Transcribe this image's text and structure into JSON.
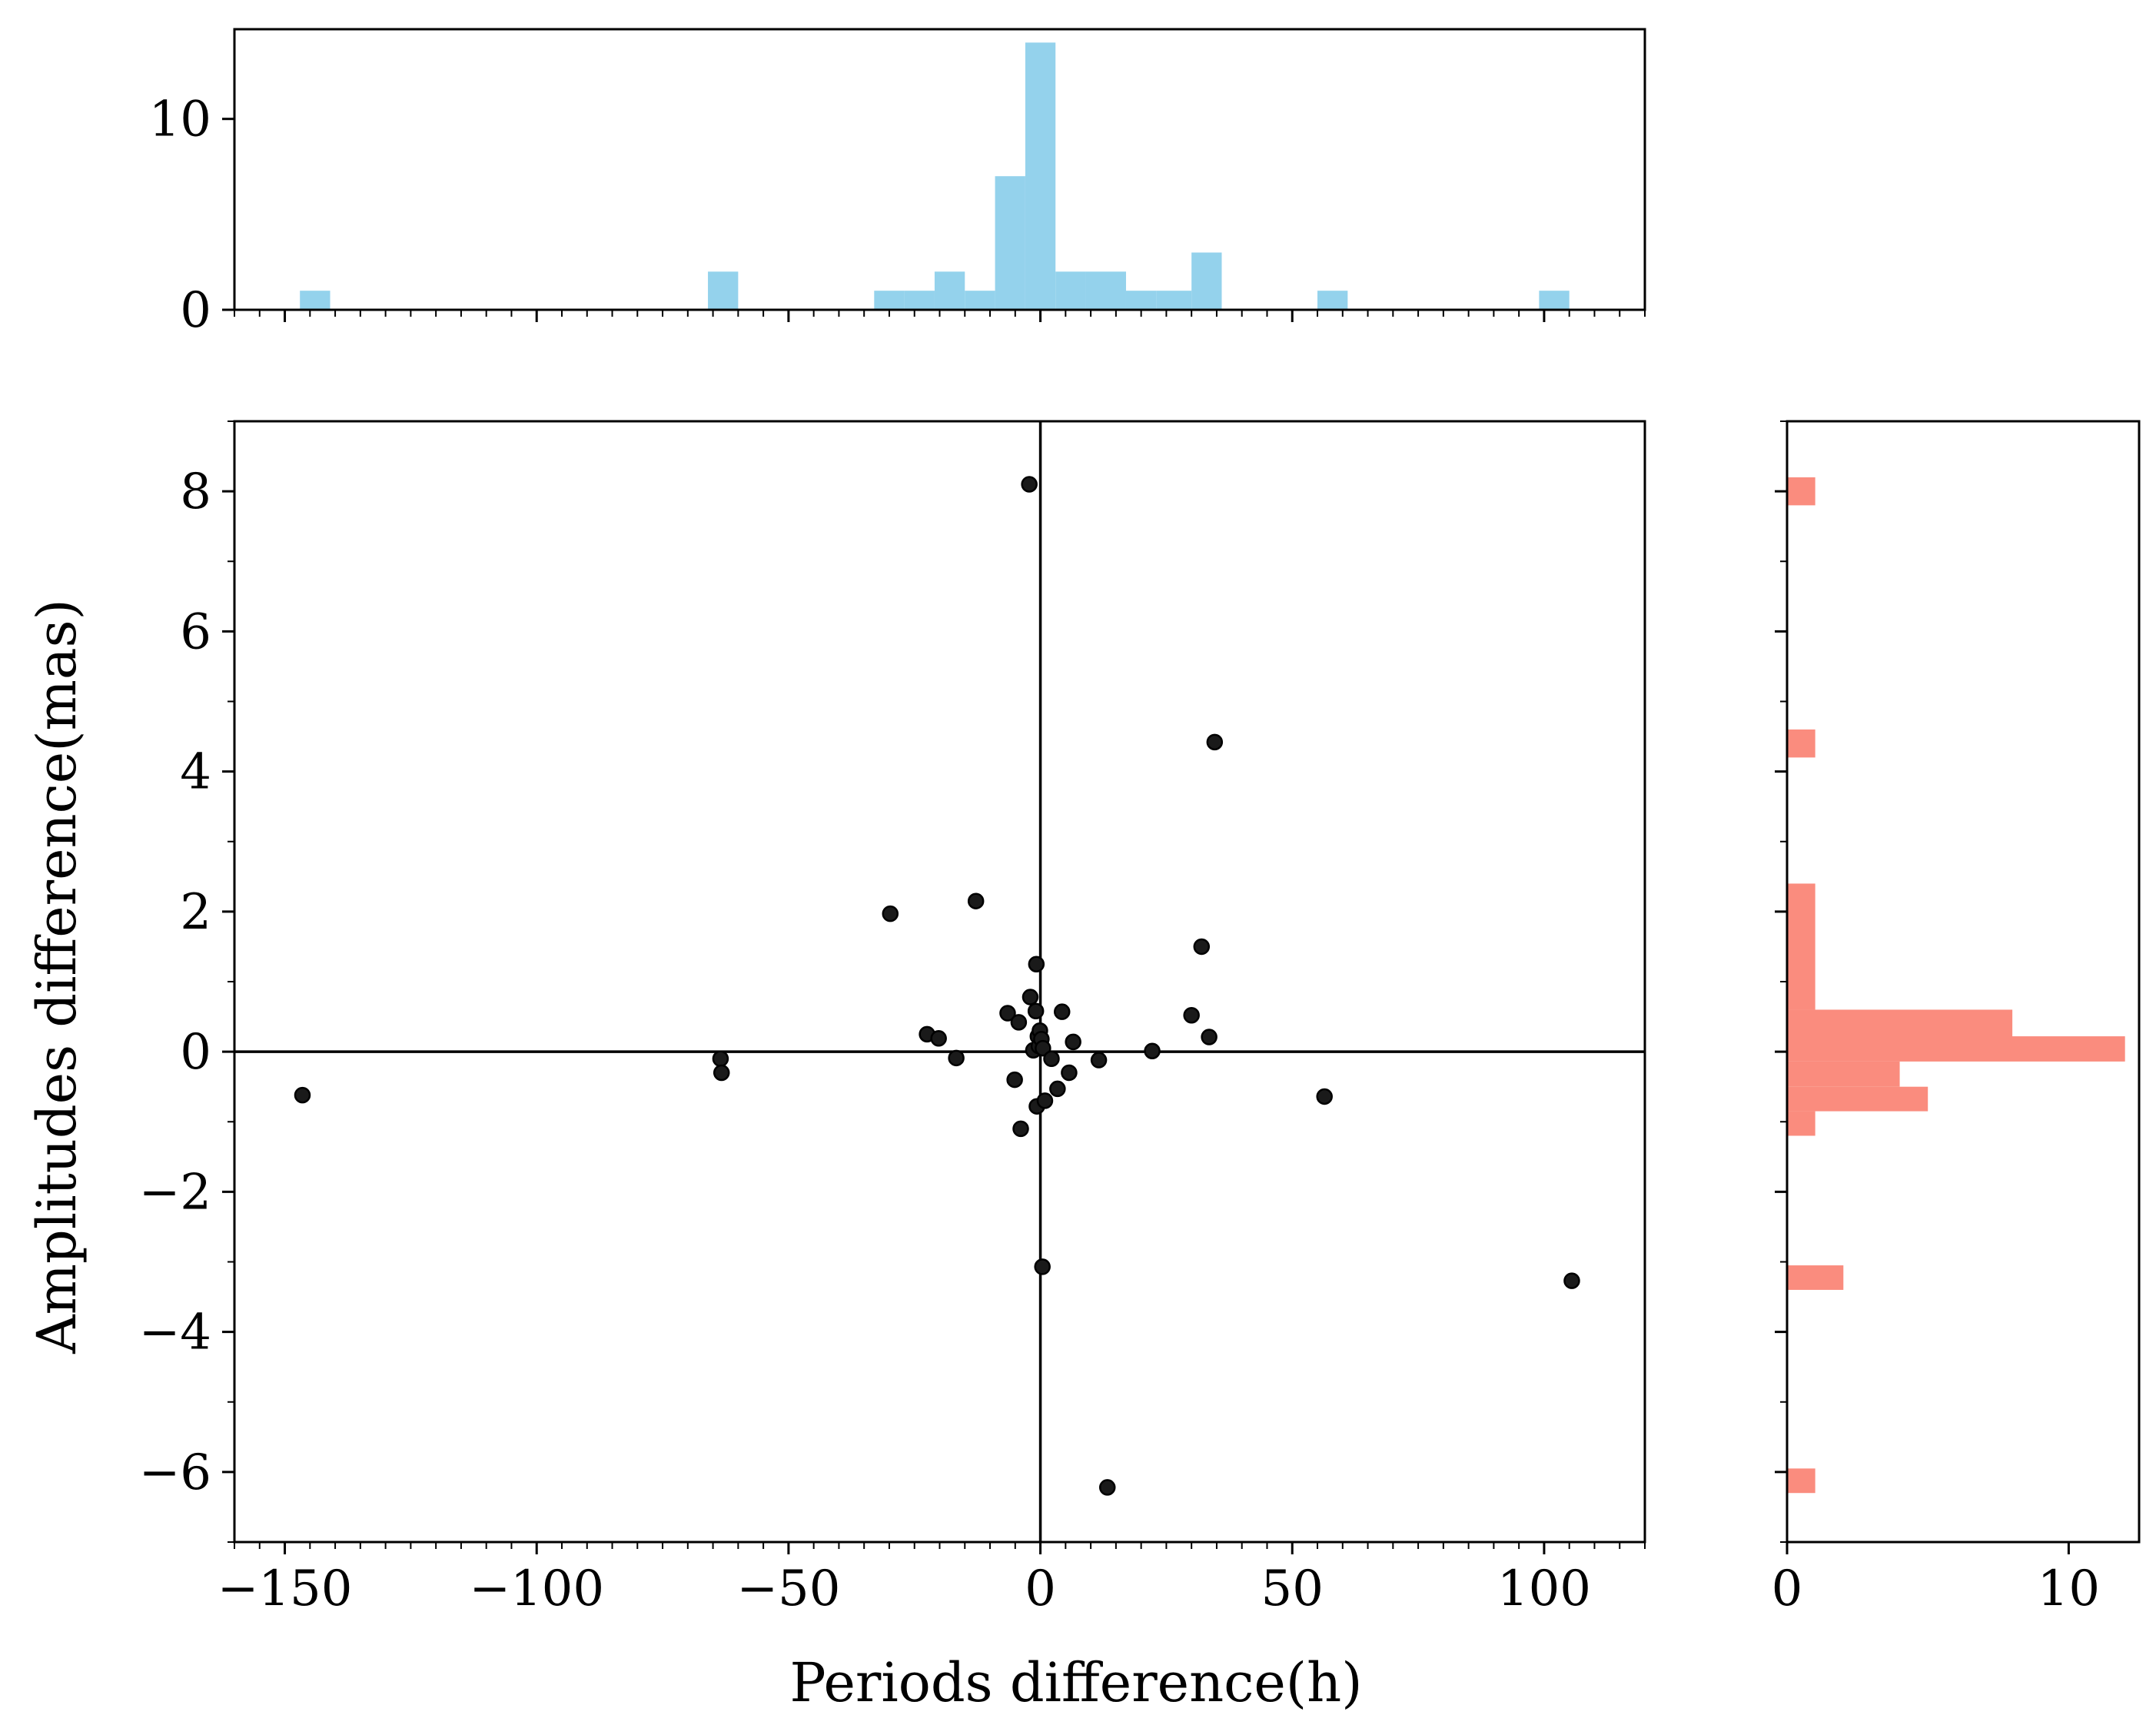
{
  "chart_data": {
    "type": "scatter",
    "title": "",
    "xlabel": "Periods difference(h)",
    "ylabel": "Amplitudes difference(mas)",
    "xlim": [
      -160,
      120
    ],
    "ylim": [
      -7,
      9
    ],
    "xticks": [
      -150,
      -100,
      -50,
      0,
      50,
      100
    ],
    "yticks": [
      -6,
      -4,
      -2,
      0,
      2,
      4,
      6,
      8
    ],
    "reference_lines": {
      "x": 0,
      "y": 0
    },
    "points": [
      {
        "x": -146.5,
        "y": -0.62
      },
      {
        "x": -63.5,
        "y": -0.1
      },
      {
        "x": -63.3,
        "y": -0.3
      },
      {
        "x": -29.8,
        "y": 1.97
      },
      {
        "x": -22.5,
        "y": 0.25
      },
      {
        "x": -20.2,
        "y": 0.19
      },
      {
        "x": -16.7,
        "y": -0.09
      },
      {
        "x": -12.8,
        "y": 2.15
      },
      {
        "x": -6.5,
        "y": 0.55
      },
      {
        "x": -5.1,
        "y": -0.4
      },
      {
        "x": -4.3,
        "y": 0.42
      },
      {
        "x": -3.9,
        "y": -1.1
      },
      {
        "x": -2.2,
        "y": 8.1
      },
      {
        "x": -2.0,
        "y": 0.78
      },
      {
        "x": -1.4,
        "y": 0.02
      },
      {
        "x": -0.9,
        "y": 0.58
      },
      {
        "x": -0.8,
        "y": 1.25
      },
      {
        "x": -0.7,
        "y": -0.78
      },
      {
        "x": -0.5,
        "y": 0.22
      },
      {
        "x": -0.3,
        "y": 0.08
      },
      {
        "x": -0.1,
        "y": 0.3
      },
      {
        "x": 0.2,
        "y": 0.18
      },
      {
        "x": 0.5,
        "y": 0.05
      },
      {
        "x": 0.4,
        "y": -3.07
      },
      {
        "x": 0.9,
        "y": -0.7
      },
      {
        "x": 2.2,
        "y": -0.1
      },
      {
        "x": 3.4,
        "y": -0.53
      },
      {
        "x": 4.3,
        "y": 0.57
      },
      {
        "x": 5.7,
        "y": -0.3
      },
      {
        "x": 6.5,
        "y": 0.14
      },
      {
        "x": 11.6,
        "y": -0.12
      },
      {
        "x": 13.3,
        "y": -6.22
      },
      {
        "x": 22.2,
        "y": 0.01
      },
      {
        "x": 30.0,
        "y": 0.52
      },
      {
        "x": 32.0,
        "y": 1.5
      },
      {
        "x": 33.5,
        "y": 0.21
      },
      {
        "x": 34.6,
        "y": 4.42
      },
      {
        "x": 56.4,
        "y": -0.64
      },
      {
        "x": 105.5,
        "y": -3.27
      }
    ],
    "point_color": "#1a1a1a",
    "top_histogram": {
      "orientation": "vertical",
      "color": "#94d2ec",
      "yticks": [
        0,
        10
      ],
      "ylim": [
        0,
        14.7
      ],
      "bars": [
        {
          "x0": -147,
          "x1": -141,
          "count": 1
        },
        {
          "x0": -66,
          "x1": -60,
          "count": 2
        },
        {
          "x0": -33,
          "x1": -27,
          "count": 1
        },
        {
          "x0": -27,
          "x1": -21,
          "count": 1
        },
        {
          "x0": -21,
          "x1": -15,
          "count": 2
        },
        {
          "x0": -15,
          "x1": -9,
          "count": 1
        },
        {
          "x0": -9,
          "x1": -3,
          "count": 7
        },
        {
          "x0": -3,
          "x1": 3,
          "count": 14
        },
        {
          "x0": 3,
          "x1": 9,
          "count": 2
        },
        {
          "x0": 9,
          "x1": 17,
          "count": 2
        },
        {
          "x0": 17,
          "x1": 23,
          "count": 1
        },
        {
          "x0": 23,
          "x1": 30,
          "count": 1
        },
        {
          "x0": 30,
          "x1": 36,
          "count": 3
        },
        {
          "x0": 55,
          "x1": 61,
          "count": 1
        },
        {
          "x0": 99,
          "x1": 105,
          "count": 1
        }
      ]
    },
    "right_histogram": {
      "orientation": "horizontal",
      "color": "#fa8c7e",
      "xticks": [
        0,
        10
      ],
      "xlim": [
        0,
        12.5
      ],
      "bars": [
        {
          "y0": 7.8,
          "y1": 8.2,
          "count": 1
        },
        {
          "y0": 4.2,
          "y1": 4.6,
          "count": 1
        },
        {
          "y0": 0.6,
          "y1": 2.4,
          "count": 1
        },
        {
          "y0": -0.1,
          "y1": 0.6,
          "count": 8
        },
        {
          "y0": -0.14,
          "y1": 0.22,
          "count": 12
        },
        {
          "y0": -0.5,
          "y1": -0.14,
          "count": 4
        },
        {
          "y0": -0.85,
          "y1": -0.5,
          "count": 5
        },
        {
          "y0": -1.2,
          "y1": -0.85,
          "count": 1
        },
        {
          "y0": -3.4,
          "y1": -3.05,
          "count": 2
        },
        {
          "y0": -6.3,
          "y1": -5.95,
          "count": 1
        }
      ]
    }
  }
}
